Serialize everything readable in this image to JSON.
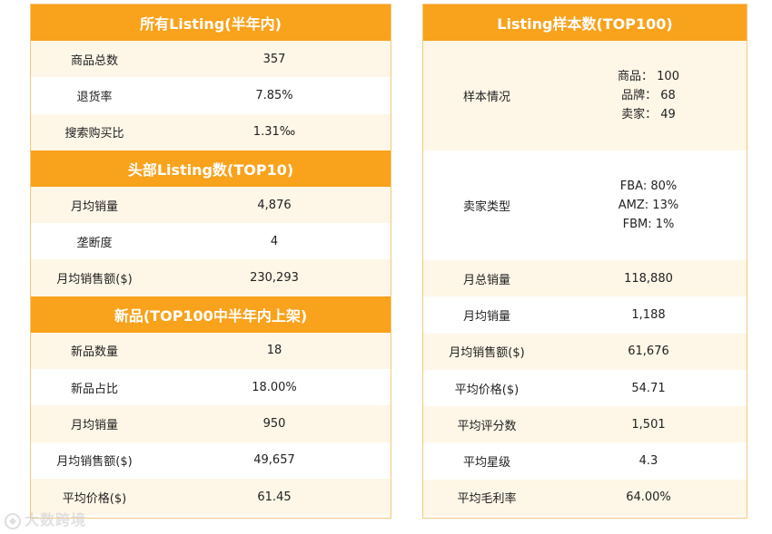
{
  "left": {
    "sections": [
      {
        "title": "所有Listing(半年内)",
        "rows": [
          {
            "label": "商品总数",
            "value": "357"
          },
          {
            "label": "退货率",
            "value": "7.85%"
          },
          {
            "label": "搜索购买比",
            "value": "1.31‰"
          }
        ]
      },
      {
        "title": "头部Listing数(TOP10)",
        "rows": [
          {
            "label": "月均销量",
            "value": "4,876"
          },
          {
            "label": "垄断度",
            "value": "4"
          },
          {
            "label": "月均销售额($)",
            "value": "230,293"
          }
        ]
      },
      {
        "title": "新品(TOP100中半年内上架)",
        "rows": [
          {
            "label": "新品数量",
            "value": "18"
          },
          {
            "label": "新品占比",
            "value": "18.00%"
          },
          {
            "label": "月均销量",
            "value": "950"
          },
          {
            "label": "月均销售额($)",
            "value": "49,657"
          },
          {
            "label": "平均价格($)",
            "value": "61.45"
          }
        ]
      }
    ]
  },
  "right": {
    "title": "Listing样本数(TOP100)",
    "sample": {
      "label": "样本情况",
      "lines": [
        "商品： 100",
        "品牌： 68",
        "卖家： 49"
      ]
    },
    "seller": {
      "label": "卖家类型",
      "lines": [
        "FBA: 80%",
        "AMZ: 13%",
        "FBM: 1%"
      ]
    },
    "rows": [
      {
        "label": "月总销量",
        "value": "118,880"
      },
      {
        "label": "月均销量",
        "value": "1,188"
      },
      {
        "label": "月均销售额($)",
        "value": "61,676"
      },
      {
        "label": "平均价格($)",
        "value": "54.71"
      },
      {
        "label": "平均评分数",
        "value": "1,501"
      },
      {
        "label": "平均星级",
        "value": "4.3"
      },
      {
        "label": "平均毛利率",
        "value": "64.00%"
      }
    ]
  },
  "watermark": "大数跨境"
}
